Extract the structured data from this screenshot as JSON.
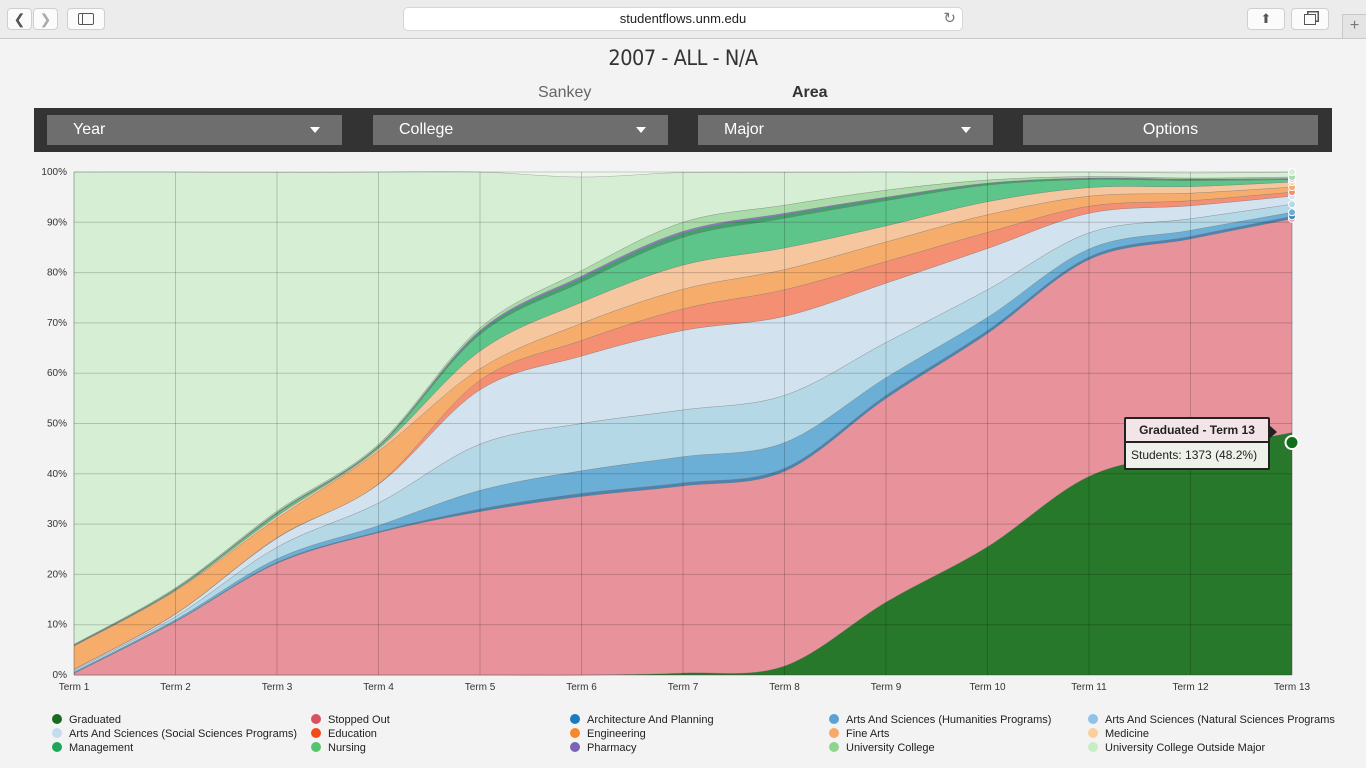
{
  "browser": {
    "url": "studentflows.unm.edu"
  },
  "page": {
    "title": "2007 - ALL - N/A",
    "views": [
      "Sankey",
      "Area"
    ],
    "active_view": "Area"
  },
  "controls": {
    "year": "Year",
    "college": "College",
    "major": "Major",
    "options": "Options"
  },
  "tooltip": {
    "title": "Graduated - Term 13",
    "body": "Students: 1373 (48.2%)"
  },
  "chart_data": {
    "type": "area",
    "stacked": true,
    "title": "",
    "x": [
      "Term 1",
      "Term 2",
      "Term 3",
      "Term 4",
      "Term 5",
      "Term 6",
      "Term 7",
      "Term 8",
      "Term 9",
      "Term 10",
      "Term 11",
      "Term 12",
      "Term 13"
    ],
    "ylim": [
      0,
      100
    ],
    "y_ticks": [
      "0%",
      "10%",
      "20%",
      "30%",
      "40%",
      "50%",
      "60%",
      "70%",
      "80%",
      "90%",
      "100%"
    ],
    "grid": true,
    "legend_position": "bottom",
    "series": [
      {
        "name": "Graduated",
        "color": "#27782a",
        "values": [
          0,
          0,
          0,
          0,
          0,
          0,
          0.4,
          1.8,
          14.5,
          25.5,
          39.5,
          44.3,
          48.2
        ]
      },
      {
        "name": "Stopped Out",
        "color": "#e8939b",
        "values": [
          0.3,
          10.6,
          22.2,
          28.3,
          32.5,
          35.5,
          37.2,
          38.7,
          40.5,
          42.4,
          43.1,
          42.4,
          42.5
        ]
      },
      {
        "name": "Architecture And Planning",
        "color": "#4a84b2",
        "values": [
          0.1,
          0.1,
          0.2,
          0.2,
          0.5,
          0.6,
          0.6,
          0.6,
          0.6,
          0.6,
          0.5,
          0.5,
          0.5
        ]
      },
      {
        "name": "Arts And Sciences (Humanities Programs)",
        "color": "#6baed6",
        "values": [
          0.2,
          0.3,
          0.7,
          1.2,
          3.7,
          4.5,
          5.2,
          5.1,
          3.5,
          2.6,
          1.6,
          1.2,
          0.8
        ]
      },
      {
        "name": "Arts And Sciences (Natural Sciences Programs)",
        "color": "#b4d8e6",
        "values": [
          0.3,
          0.6,
          2.3,
          4.5,
          9.2,
          9.4,
          9.3,
          9.4,
          7.0,
          5.5,
          3.2,
          2.3,
          1.6
        ]
      },
      {
        "name": "Arts And Sciences (Social Sciences Programs)",
        "color": "#d3e2ef",
        "values": [
          0.2,
          0.5,
          1.8,
          3.7,
          10.8,
          13.4,
          15.8,
          15.7,
          11.8,
          8.2,
          3.9,
          2.6,
          1.6
        ]
      },
      {
        "name": "Education",
        "color": "#f58f74",
        "values": [
          0.05,
          0.05,
          0.1,
          0.1,
          1.9,
          3.1,
          4.3,
          5.3,
          4.3,
          3.2,
          1.4,
          1.0,
          0.8
        ]
      },
      {
        "name": "Engineering",
        "color": "#f6ad6c",
        "values": [
          4.6,
          4.6,
          3.8,
          6.5,
          2.3,
          3.4,
          3.9,
          4.0,
          3.9,
          3.5,
          2.0,
          1.5,
          1.0
        ]
      },
      {
        "name": "Fine Arts",
        "color": "#f6c69e",
        "values": [
          0.05,
          0.1,
          0.5,
          0.5,
          3.5,
          4.2,
          4.8,
          4.3,
          3.2,
          2.6,
          1.7,
          1.3,
          1.0
        ]
      },
      {
        "name": "Management",
        "color": "#5dc48a",
        "values": [
          0.1,
          0.2,
          0.5,
          0.4,
          3.3,
          4.0,
          5.5,
          5.9,
          5.0,
          3.3,
          1.6,
          1.2,
          0.5
        ]
      },
      {
        "name": "Nursing",
        "color": "#3fa36b",
        "values": [
          0.05,
          0.05,
          0.1,
          0.1,
          0.5,
          0.8,
          0.8,
          0.7,
          0.5,
          0.3,
          0.2,
          0.2,
          0.1
        ]
      },
      {
        "name": "Pharmacy",
        "color": "#8b7cc0",
        "values": [
          0.05,
          0.05,
          0.1,
          0.1,
          0.3,
          0.4,
          0.4,
          0.3,
          0.2,
          0.1,
          0.1,
          0.1,
          0.1
        ]
      },
      {
        "name": "University College",
        "color": "#a9dca9",
        "values": [
          0.1,
          0.2,
          0.3,
          0.3,
          0.5,
          1.1,
          1.8,
          1.6,
          1.4,
          0.6,
          0.3,
          0.2,
          0.3
        ]
      },
      {
        "name": "University College Outside Major",
        "color": "#d5eed4",
        "values": [
          93.9,
          82.65,
          67.3,
          54.1,
          31.0,
          18.6,
          9.9,
          6.5,
          3.6,
          1.5,
          0.9,
          1.0,
          1.0
        ]
      }
    ],
    "legend": [
      {
        "name": "Graduated",
        "color": "#1a6b1f"
      },
      {
        "name": "Stopped Out",
        "color": "#d8535f"
      },
      {
        "name": "Architecture And Planning",
        "color": "#1a7cbf"
      },
      {
        "name": "Arts And Sciences (Humanities Programs)",
        "color": "#5aa1d6"
      },
      {
        "name": "Arts And Sciences (Natural Sciences Programs",
        "color": "#8fc2e8"
      },
      {
        "name": "Arts And Sciences (Social Sciences Programs)",
        "color": "#c5dcf0"
      },
      {
        "name": "Education",
        "color": "#f34a1a"
      },
      {
        "name": "Engineering",
        "color": "#f5882a"
      },
      {
        "name": "Fine Arts",
        "color": "#f7a968"
      },
      {
        "name": "Medicine",
        "color": "#fbcf9c"
      },
      {
        "name": "Management",
        "color": "#1ea75a"
      },
      {
        "name": "Nursing",
        "color": "#56c46e"
      },
      {
        "name": "Pharmacy",
        "color": "#7b63b5"
      },
      {
        "name": "University College",
        "color": "#8fd48d"
      },
      {
        "name": "University College Outside Major",
        "color": "#c8ecc4"
      }
    ]
  }
}
